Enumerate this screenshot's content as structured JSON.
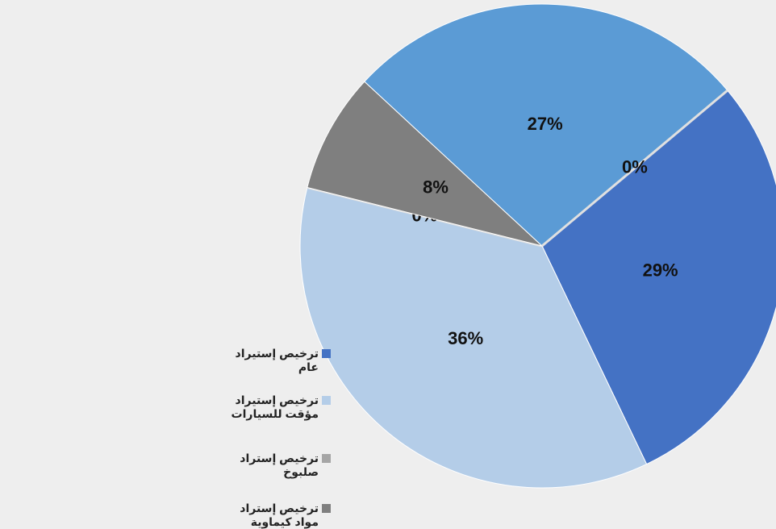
{
  "chart_data": {
    "type": "pie",
    "categories": [
      "ترخيص إستيراد عام",
      "ترخيص إستيراد مؤقت للسيارات",
      "ترخيص إستراد صلبوخ",
      "ترخيص إستراد مواد كيماوية",
      null,
      null
    ],
    "values": [
      29,
      36,
      0,
      8,
      27,
      0
    ],
    "value_labels": [
      "29%",
      "36%",
      "0%",
      "8%",
      "27%",
      "0%"
    ],
    "colors": [
      "#4472c4",
      "#b4cde8",
      "#a5a5a5",
      "#7f7f7f",
      "#5b9bd5",
      "#d9d9d9"
    ],
    "legend": "left"
  }
}
